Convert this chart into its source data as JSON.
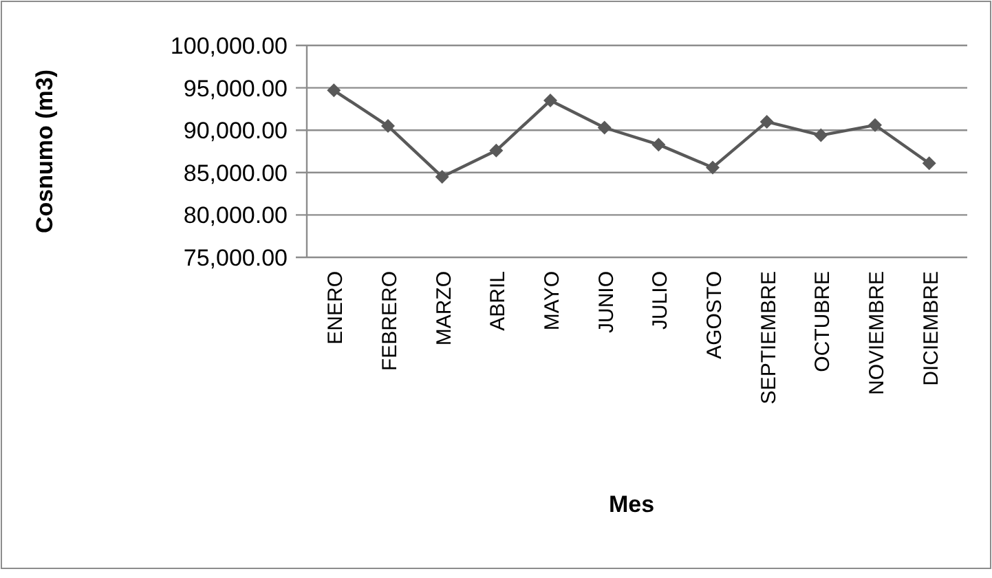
{
  "chart_data": {
    "type": "line",
    "xlabel": "Mes",
    "ylabel": "Cosnumo (m3)",
    "categories": [
      "ENERO",
      "FEBRERO",
      "MARZO",
      "ABRIL",
      "MAYO",
      "JUNIO",
      "JULIO",
      "AGOSTO",
      "SEPTIEMBRE",
      "OCTUBRE",
      "NOVIEMBRE",
      "DICIEMBRE"
    ],
    "series": [
      {
        "color": "#595959",
        "values": [
          94700,
          90500,
          84500,
          87600,
          93500,
          90300,
          88300,
          85600,
          91000,
          89400,
          90600,
          86100
        ]
      }
    ],
    "ylim": [
      75000,
      100000
    ],
    "yticks": [
      {
        "value": 75000,
        "label": "75,000.00"
      },
      {
        "value": 80000,
        "label": "80,000.00"
      },
      {
        "value": 85000,
        "label": "85,000.00"
      },
      {
        "value": 90000,
        "label": "90,000.00"
      },
      {
        "value": 95000,
        "label": "95,000.00"
      },
      {
        "value": 100000,
        "label": "100,000.00"
      }
    ],
    "grid": "y",
    "marker": "diamond",
    "line_style": "solid"
  }
}
